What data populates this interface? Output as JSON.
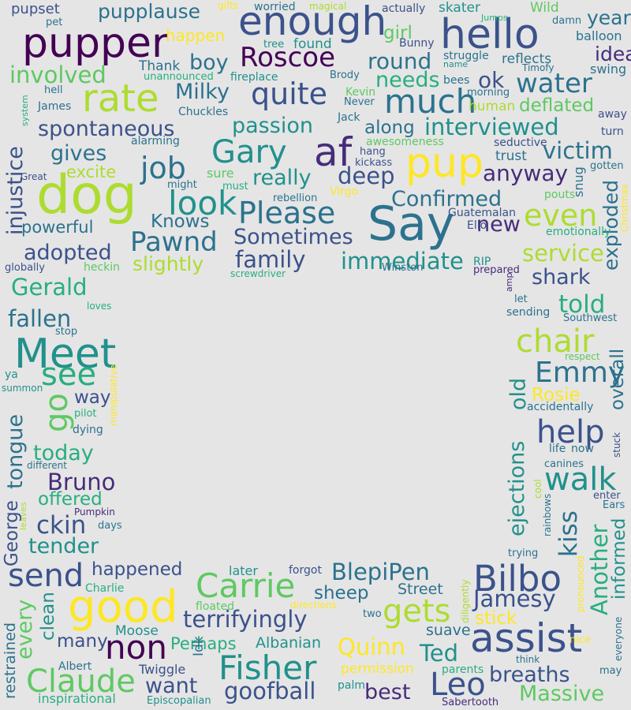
{
  "wordcloud": {
    "colors": {
      "background": "#e5e5e5",
      "c0": "#440154",
      "c1": "#472c7a",
      "c2": "#3b528b",
      "c3": "#2c728e",
      "c4": "#21918c",
      "c5": "#28ae80",
      "c6": "#5ec962",
      "c7": "#addc30",
      "c8": "#fde725"
    },
    "words": [
      {
        "text": "pupper",
        "color": "c0"
      },
      {
        "text": "enough",
        "color": "c2"
      },
      {
        "text": "hello",
        "color": "c2"
      },
      {
        "text": "pupplause",
        "color": "c3"
      },
      {
        "text": "pupset",
        "color": "c2"
      },
      {
        "text": "year",
        "color": "c3"
      },
      {
        "text": "Roscoe",
        "color": "c0"
      },
      {
        "text": "rate",
        "color": "c7"
      },
      {
        "text": "quite",
        "color": "c2"
      },
      {
        "text": "much",
        "color": "c3"
      },
      {
        "text": "water",
        "color": "c3"
      },
      {
        "text": "idea",
        "color": "c1"
      },
      {
        "text": "dog",
        "color": "c7"
      },
      {
        "text": "af",
        "color": "c1"
      },
      {
        "text": "pup",
        "color": "c8"
      },
      {
        "text": "Say",
        "color": "c3"
      },
      {
        "text": "Gary",
        "color": "c4"
      },
      {
        "text": "job",
        "color": "c3"
      },
      {
        "text": "look",
        "color": "c4"
      },
      {
        "text": "Please",
        "color": "c3"
      },
      {
        "text": "Pawnd",
        "color": "c3"
      },
      {
        "text": "Meet",
        "color": "c4"
      },
      {
        "text": "good",
        "color": "c8"
      },
      {
        "text": "assist",
        "color": "c2"
      },
      {
        "text": "Bilbo",
        "color": "c2"
      },
      {
        "text": "Carrie",
        "color": "c6"
      },
      {
        "text": "gets",
        "color": "c7"
      },
      {
        "text": "non",
        "color": "c0"
      },
      {
        "text": "Fisher",
        "color": "c4"
      },
      {
        "text": "Claude",
        "color": "c6"
      },
      {
        "text": "Leo",
        "color": "c2"
      },
      {
        "text": "help",
        "color": "c2"
      },
      {
        "text": "walk",
        "color": "c4"
      },
      {
        "text": "chair",
        "color": "c7"
      },
      {
        "text": "Emmy",
        "color": "c3"
      },
      {
        "text": "go",
        "color": "c6"
      },
      {
        "text": "see",
        "color": "c5"
      },
      {
        "text": "send",
        "color": "c2"
      },
      {
        "text": "happen",
        "color": "c8"
      },
      {
        "text": "boy",
        "color": "c3"
      },
      {
        "text": "Milky",
        "color": "c3"
      },
      {
        "text": "involved",
        "color": "c6"
      },
      {
        "text": "round",
        "color": "c3"
      },
      {
        "text": "needs",
        "color": "c5"
      },
      {
        "text": "ok",
        "color": "c2"
      },
      {
        "text": "girl",
        "color": "c6"
      },
      {
        "text": "deflated",
        "color": "c6"
      },
      {
        "text": "reflects",
        "color": "c3"
      },
      {
        "text": "balloon",
        "color": "c3"
      },
      {
        "text": "struggle",
        "color": "c3"
      },
      {
        "text": "skater",
        "color": "c4"
      },
      {
        "text": "Wild",
        "color": "c6"
      },
      {
        "text": "swing",
        "color": "c3"
      },
      {
        "text": "spontaneous",
        "color": "c2"
      },
      {
        "text": "passion",
        "color": "c4"
      },
      {
        "text": "interviewed",
        "color": "c4"
      },
      {
        "text": "along",
        "color": "c3"
      },
      {
        "text": "gives",
        "color": "c3"
      },
      {
        "text": "victim",
        "color": "c3"
      },
      {
        "text": "injustice",
        "color": "c2"
      },
      {
        "text": "excite",
        "color": "c7"
      },
      {
        "text": "really",
        "color": "c4"
      },
      {
        "text": "deep",
        "color": "c2"
      },
      {
        "text": "anyway",
        "color": "c1"
      },
      {
        "text": "Confirmed",
        "color": "c3"
      },
      {
        "text": "even",
        "color": "c7"
      },
      {
        "text": "exploded",
        "color": "c3"
      },
      {
        "text": "Knows",
        "color": "c3"
      },
      {
        "text": "powerful",
        "color": "c3"
      },
      {
        "text": "Sometimes",
        "color": "c2"
      },
      {
        "text": "adopted",
        "color": "c2"
      },
      {
        "text": "family",
        "color": "c2"
      },
      {
        "text": "immediate",
        "color": "c4"
      },
      {
        "text": "service",
        "color": "c7"
      },
      {
        "text": "new",
        "color": "c1"
      },
      {
        "text": "shark",
        "color": "c2"
      },
      {
        "text": "slightly",
        "color": "c7"
      },
      {
        "text": "Gerald",
        "color": "c5"
      },
      {
        "text": "fallen",
        "color": "c3"
      },
      {
        "text": "told",
        "color": "c5"
      },
      {
        "text": "overall",
        "color": "c3"
      },
      {
        "text": "old",
        "color": "c4"
      },
      {
        "text": "way",
        "color": "c2"
      },
      {
        "text": "today",
        "color": "c5"
      },
      {
        "text": "Bruno",
        "color": "c1"
      },
      {
        "text": "offered",
        "color": "c5"
      },
      {
        "text": "ckin",
        "color": "c2"
      },
      {
        "text": "tender",
        "color": "c4"
      },
      {
        "text": "George",
        "color": "c2"
      },
      {
        "text": "tongue",
        "color": "c3"
      },
      {
        "text": "ejections",
        "color": "c4"
      },
      {
        "text": "kiss",
        "color": "c3"
      },
      {
        "text": "Another",
        "color": "c5"
      },
      {
        "text": "informed",
        "color": "c4"
      },
      {
        "text": "Rosie",
        "color": "c8"
      },
      {
        "text": "happened",
        "color": "c2"
      },
      {
        "text": "BlepiPen",
        "color": "c3"
      },
      {
        "text": "Jamesy",
        "color": "c2"
      },
      {
        "text": "every",
        "color": "c6"
      },
      {
        "text": "clean",
        "color": "c4"
      },
      {
        "text": "terrifyingly",
        "color": "c2"
      },
      {
        "text": "sheep",
        "color": "c3"
      },
      {
        "text": "many",
        "color": "c2"
      },
      {
        "text": "Perhaps",
        "color": "c5"
      },
      {
        "text": "Quinn",
        "color": "c8"
      },
      {
        "text": "Ted",
        "color": "c4"
      },
      {
        "text": "stick",
        "color": "c8"
      },
      {
        "text": "breaths",
        "color": "c2"
      },
      {
        "text": "Massive",
        "color": "c6"
      },
      {
        "text": "want",
        "color": "c2"
      },
      {
        "text": "goofball",
        "color": "c2"
      },
      {
        "text": "best",
        "color": "c1"
      },
      {
        "text": "restrained",
        "color": "c3"
      },
      {
        "text": "Street",
        "color": "c3"
      },
      {
        "text": "suave",
        "color": "c3"
      },
      {
        "text": "Albanian",
        "color": "c4"
      },
      {
        "text": "Moose",
        "color": "c4"
      },
      {
        "text": "Idk",
        "color": "c3"
      },
      {
        "text": "Twiggle",
        "color": "c2"
      },
      {
        "text": "permission",
        "color": "c8"
      },
      {
        "text": "parents",
        "color": "c5"
      },
      {
        "text": "inspirational",
        "color": "c5"
      },
      {
        "text": "Episcopalian",
        "color": "c4"
      },
      {
        "text": "Sabertooth",
        "color": "c1"
      },
      {
        "text": "palm",
        "color": "c4"
      },
      {
        "text": "Albert",
        "color": "c3"
      },
      {
        "text": "Charlie",
        "color": "c5"
      },
      {
        "text": "later",
        "color": "c4"
      },
      {
        "text": "forgot",
        "color": "c2"
      },
      {
        "text": "floated",
        "color": "c6"
      },
      {
        "text": "directions",
        "color": "c8"
      },
      {
        "text": "two",
        "color": "c3"
      },
      {
        "text": "diligently",
        "color": "c7"
      },
      {
        "text": "pronounced",
        "color": "c8"
      },
      {
        "text": "everyone",
        "color": "c3"
      },
      {
        "text": "nice",
        "color": "c8"
      },
      {
        "text": "may",
        "color": "c3"
      },
      {
        "text": "think",
        "color": "c3"
      },
      {
        "text": "trying",
        "color": "c3"
      },
      {
        "text": "rainbows",
        "color": "c3"
      },
      {
        "text": "cool",
        "color": "c7"
      },
      {
        "text": "Ears",
        "color": "c3"
      },
      {
        "text": "enter",
        "color": "c2"
      },
      {
        "text": "canines",
        "color": "c3"
      },
      {
        "text": "life",
        "color": "c3"
      },
      {
        "text": "now",
        "color": "c3"
      },
      {
        "text": "stuck",
        "color": "c2"
      },
      {
        "text": "accidentally",
        "color": "c3"
      },
      {
        "text": "respect",
        "color": "c6"
      },
      {
        "text": "Southwest",
        "color": "c3"
      },
      {
        "text": "sending",
        "color": "c3"
      },
      {
        "text": "let",
        "color": "c3"
      },
      {
        "text": "amp",
        "color": "c1"
      },
      {
        "text": "prepared",
        "color": "c1"
      },
      {
        "text": "RIP",
        "color": "c4"
      },
      {
        "text": "Winston",
        "color": "c3"
      },
      {
        "text": "Ello",
        "color": "c2"
      },
      {
        "text": "Guatemalan",
        "color": "c2"
      },
      {
        "text": "pouts",
        "color": "c6"
      },
      {
        "text": "emotionally",
        "color": "c5"
      },
      {
        "text": "Christmas",
        "color": "c8"
      },
      {
        "text": "gotten",
        "color": "c3"
      },
      {
        "text": "snug",
        "color": "c3"
      },
      {
        "text": "seductive",
        "color": "c2"
      },
      {
        "text": "trust",
        "color": "c3"
      },
      {
        "text": "awesomeness",
        "color": "c6"
      },
      {
        "text": "hang",
        "color": "c2"
      },
      {
        "text": "kickass",
        "color": "c2"
      },
      {
        "text": "Virgo",
        "color": "c8"
      },
      {
        "text": "rebellion",
        "color": "c3"
      },
      {
        "text": "must",
        "color": "c5"
      },
      {
        "text": "might",
        "color": "c3"
      },
      {
        "text": "sure",
        "color": "c6"
      },
      {
        "text": "alarming",
        "color": "c3"
      },
      {
        "text": "Chuckles",
        "color": "c3"
      },
      {
        "text": "Jack",
        "color": "c3"
      },
      {
        "text": "Kevin",
        "color": "c6"
      },
      {
        "text": "Never",
        "color": "c3"
      },
      {
        "text": "human",
        "color": "c7"
      },
      {
        "text": "morning",
        "color": "c3"
      },
      {
        "text": "bees",
        "color": "c3"
      },
      {
        "text": "away",
        "color": "c2"
      },
      {
        "text": "turn",
        "color": "c2"
      },
      {
        "text": "Timofy",
        "color": "c3"
      },
      {
        "text": "damn",
        "color": "c3"
      },
      {
        "text": "Jumps",
        "color": "c5"
      },
      {
        "text": "name",
        "color": "c4"
      },
      {
        "text": "Bunny",
        "color": "c2"
      },
      {
        "text": "actually",
        "color": "c2"
      },
      {
        "text": "magical",
        "color": "c7"
      },
      {
        "text": "worried",
        "color": "c3"
      },
      {
        "text": "gifts",
        "color": "c8"
      },
      {
        "text": "tree",
        "color": "c4"
      },
      {
        "text": "found",
        "color": "c4"
      },
      {
        "text": "fireplace",
        "color": "c4"
      },
      {
        "text": "Brody",
        "color": "c3"
      },
      {
        "text": "unannounced",
        "color": "c5"
      },
      {
        "text": "Thank",
        "color": "c3"
      },
      {
        "text": "pet",
        "color": "c3"
      },
      {
        "text": "hell",
        "color": "c3"
      },
      {
        "text": "James",
        "color": "c3"
      },
      {
        "text": "system",
        "color": "c5"
      },
      {
        "text": "Great",
        "color": "c2"
      },
      {
        "text": "globally",
        "color": "c2"
      },
      {
        "text": "heckin",
        "color": "c6"
      },
      {
        "text": "screwdriver",
        "color": "c5"
      },
      {
        "text": "loves",
        "color": "c5"
      },
      {
        "text": "stop",
        "color": "c3"
      },
      {
        "text": "manipulative",
        "color": "c8"
      },
      {
        "text": "ya",
        "color": "c4"
      },
      {
        "text": "summon",
        "color": "c4"
      },
      {
        "text": "pilot",
        "color": "c5"
      },
      {
        "text": "dying",
        "color": "c3"
      },
      {
        "text": "different",
        "color": "c3"
      },
      {
        "text": "leaves",
        "color": "c7"
      },
      {
        "text": "Pumpkin",
        "color": "c1"
      },
      {
        "text": "days",
        "color": "c3"
      }
    ]
  }
}
